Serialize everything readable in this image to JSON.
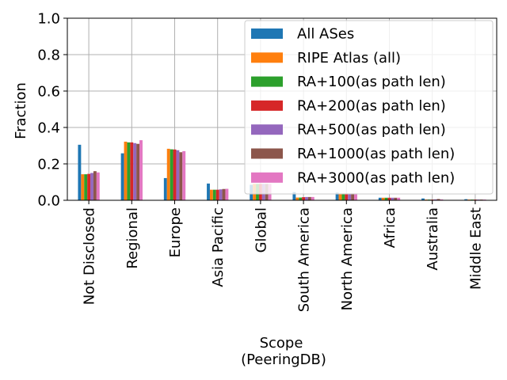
{
  "chart_data": {
    "type": "bar",
    "xlabel": "Scope",
    "xlabel_sub": "(PeeringDB)",
    "ylabel": "Fraction",
    "ylim": [
      0,
      1.0
    ],
    "yticks": [
      "0.0",
      "0.2",
      "0.4",
      "0.6",
      "0.8",
      "1.0"
    ],
    "grid": true,
    "legend_position": "top-right",
    "categories": [
      "Not Disclosed",
      "Regional",
      "Europe",
      "Asia Pacific",
      "Global",
      "South America",
      "North America",
      "Africa",
      "Australia",
      "Middle East"
    ],
    "series": [
      {
        "name": "All ASes",
        "color": "#1f77b4",
        "values": [
          0.305,
          0.258,
          0.122,
          0.092,
          0.085,
          0.045,
          0.042,
          0.014,
          0.01,
          0.006
        ]
      },
      {
        "name": "RIPE Atlas (all)",
        "color": "#ff7f0e",
        "values": [
          0.143,
          0.322,
          0.283,
          0.058,
          0.09,
          0.015,
          0.038,
          0.014,
          0.004,
          0.004
        ]
      },
      {
        "name": "RA+100(as path len)",
        "color": "#2ca02c",
        "values": [
          0.143,
          0.318,
          0.28,
          0.058,
          0.09,
          0.015,
          0.038,
          0.014,
          0.004,
          0.004
        ]
      },
      {
        "name": "RA+200(as path len)",
        "color": "#d62728",
        "values": [
          0.145,
          0.318,
          0.279,
          0.058,
          0.09,
          0.017,
          0.038,
          0.014,
          0.004,
          0.004
        ]
      },
      {
        "name": "RA+500(as path len)",
        "color": "#9467bd",
        "values": [
          0.15,
          0.314,
          0.275,
          0.06,
          0.09,
          0.018,
          0.038,
          0.014,
          0.005,
          0.004
        ]
      },
      {
        "name": "RA+1000(as path len)",
        "color": "#8c564b",
        "values": [
          0.16,
          0.31,
          0.264,
          0.062,
          0.09,
          0.018,
          0.038,
          0.014,
          0.007,
          0.004
        ]
      },
      {
        "name": "RA+3000(as path len)",
        "color": "#e377c2",
        "values": [
          0.153,
          0.33,
          0.27,
          0.063,
          0.09,
          0.018,
          0.038,
          0.014,
          0.005,
          0.004
        ]
      }
    ]
  }
}
